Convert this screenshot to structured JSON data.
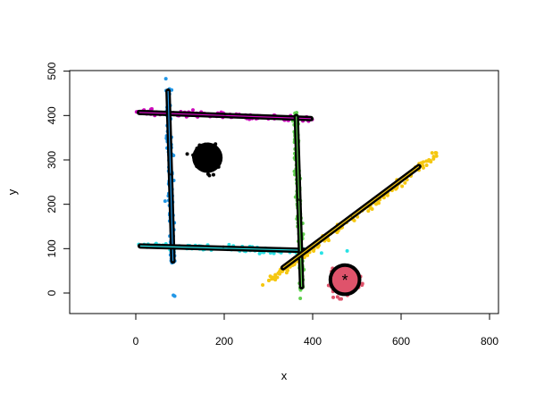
{
  "chart_data": {
    "type": "scatter",
    "title": "",
    "xlabel": "x",
    "ylabel": "y",
    "xlim": [
      -150,
      820
    ],
    "ylim": [
      -45,
      510
    ],
    "xticks": [
      "0",
      "200",
      "400",
      "600",
      "800"
    ],
    "xtick_values": [
      0,
      200,
      400,
      600,
      800
    ],
    "yticks": [
      "0",
      "100",
      "200",
      "300",
      "400",
      "500"
    ],
    "ytick_values": [
      0,
      100,
      200,
      300,
      400,
      500
    ],
    "grid": false,
    "clusters": [
      {
        "color": "#DF536B",
        "shape": "blob",
        "center": [
          473,
          30
        ],
        "sd": [
          14,
          14
        ],
        "count": 220
      },
      {
        "color": "#000000",
        "shape": "blob",
        "center": [
          158,
          305
        ],
        "sd": [
          12,
          12
        ],
        "count": 300
      },
      {
        "color": "#CD0BBC",
        "shape": "segment",
        "from": [
          2,
          408
        ],
        "to": [
          400,
          392
        ],
        "spread": 3,
        "count": 160
      },
      {
        "color": "#2297E6",
        "shape": "segment",
        "from": [
          72,
          470
        ],
        "to": [
          84,
          60
        ],
        "spread": 3,
        "count": 160
      },
      {
        "color": "#28E2E5",
        "shape": "segment",
        "from": [
          5,
          107
        ],
        "to": [
          390,
          93
        ],
        "spread": 3,
        "count": 160
      },
      {
        "color": "#61D04F",
        "shape": "segment",
        "from": [
          360,
          415
        ],
        "to": [
          376,
          5
        ],
        "spread": 3,
        "count": 160
      },
      {
        "color": "#F5C710",
        "shape": "segment",
        "from": [
          300,
          25
        ],
        "to": [
          680,
          312
        ],
        "spread": 4,
        "count": 180
      }
    ],
    "outliers": [
      {
        "color": "#2297E6",
        "x": 68,
        "y": 483
      },
      {
        "color": "#2297E6",
        "x": 85,
        "y": -5
      },
      {
        "color": "#2297E6",
        "x": 88,
        "y": -7
      },
      {
        "color": "#28E2E5",
        "x": 478,
        "y": 95
      },
      {
        "color": "#28E2E5",
        "x": 420,
        "y": 90
      },
      {
        "color": "#61D04F",
        "x": 372,
        "y": -12
      },
      {
        "color": "#F5C710",
        "x": 287,
        "y": 18
      },
      {
        "color": "#F5C710",
        "x": 678,
        "y": 316
      },
      {
        "color": "#F5C710",
        "x": 663,
        "y": 300
      }
    ],
    "fitted_ellipses": [
      {
        "from": [
          8,
          407
        ],
        "to": [
          396,
          393
        ],
        "color": "#CD0BBC"
      },
      {
        "from": [
          73,
          455
        ],
        "to": [
          84,
          72
        ],
        "color": "#2297E6"
      },
      {
        "from": [
          10,
          106
        ],
        "to": [
          386,
          96
        ],
        "color": "#28E2E5"
      },
      {
        "from": [
          363,
          398
        ],
        "to": [
          375,
          14
        ],
        "color": "#61D04F"
      },
      {
        "from": [
          333,
          57
        ],
        "to": [
          640,
          285
        ],
        "color": "#F5C710"
      }
    ],
    "highlight_circle": {
      "center": [
        473,
        30
      ],
      "radius": 33,
      "fill": "#DF536B"
    }
  }
}
